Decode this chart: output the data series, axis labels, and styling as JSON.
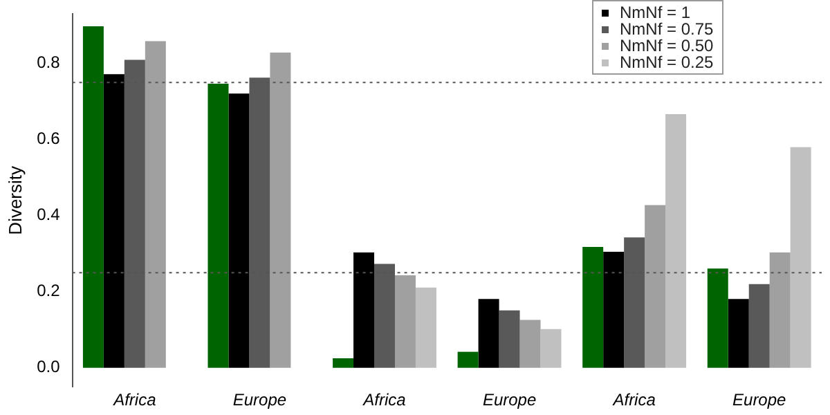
{
  "chart_data": {
    "type": "bar",
    "ylabel": "Diversity",
    "categories": [
      "Africa",
      "Europe",
      "Africa",
      "Europe",
      "Africa",
      "Europe"
    ],
    "series": [
      {
        "color": "#006400",
        "values": [
          0.898,
          0.747,
          0.025,
          0.042,
          0.318,
          0.261
        ]
      },
      {
        "name": "NmNf = 1",
        "color": "#000000",
        "values": [
          0.772,
          0.721,
          0.303,
          0.181,
          0.305,
          0.181
        ]
      },
      {
        "name": "NmNf = 0.75",
        "color": "#595959",
        "values": [
          0.81,
          0.763,
          0.273,
          0.151,
          0.343,
          0.22
        ]
      },
      {
        "name": "NmNf = 0.50",
        "color": "#a0a0a0",
        "values": [
          0.859,
          0.829,
          0.243,
          0.126,
          0.428,
          0.303
        ]
      },
      {
        "name": "NmNf = 0.25",
        "color": "#c0c0c0",
        "values": [
          null,
          null,
          0.211,
          0.102,
          0.667,
          0.58
        ]
      }
    ],
    "ylim": [
      -0.05,
      0.93
    ],
    "yticks": [
      {
        "value": 0,
        "label": "0.0"
      },
      {
        "value": 0.2,
        "label": "0.2"
      },
      {
        "value": 0.4,
        "label": "0.4"
      },
      {
        "value": 0.6,
        "label": "0.6"
      },
      {
        "value": 0.8,
        "label": "0.8"
      }
    ],
    "ref_lines": [
      {
        "axis": "y",
        "value": 0.75,
        "line_style": "dotted"
      },
      {
        "axis": "y",
        "value": 0.25,
        "line_style": "dotted"
      }
    ],
    "grid": false,
    "legend": "top right"
  }
}
